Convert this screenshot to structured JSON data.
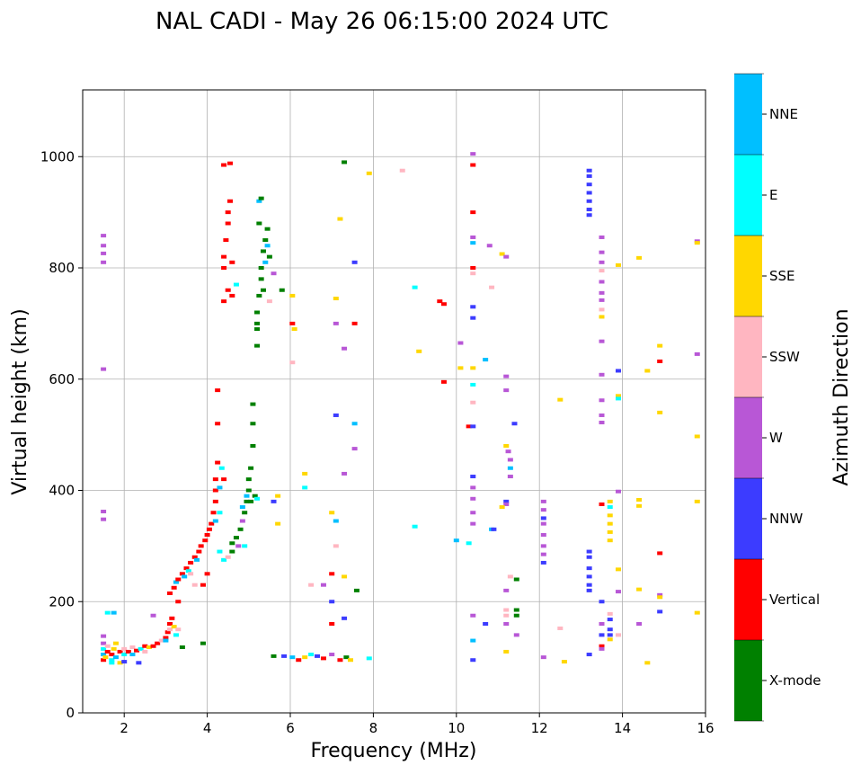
{
  "chart_data": {
    "type": "scatter",
    "title": "NAL CADI - May 26 06:15:00 2024 UTC",
    "xlabel": "Frequency (MHz)",
    "ylabel": "Virtual height (km)",
    "xlim": [
      1,
      16
    ],
    "ylim": [
      0,
      1120
    ],
    "xticks": [
      2,
      4,
      6,
      8,
      10,
      12,
      14,
      16
    ],
    "yticks": [
      0,
      200,
      400,
      600,
      800,
      1000
    ],
    "grid": true,
    "colorbar": {
      "label": "Azimuth Direction",
      "categories": [
        "X-mode",
        "Vertical",
        "NNW",
        "W",
        "SSW",
        "SSE",
        "E",
        "NNE"
      ],
      "colors": [
        "#008000",
        "#ff0000",
        "#3c3cff",
        "#b857d6",
        "#ffb6c1",
        "#ffd700",
        "#00ffff",
        "#00bfff"
      ]
    },
    "point_format": [
      "frequency_mhz",
      "height_km",
      "category_index"
    ],
    "points": [
      [
        1.5,
        95,
        1
      ],
      [
        1.5,
        105,
        7
      ],
      [
        1.5,
        115,
        6
      ],
      [
        1.5,
        125,
        3
      ],
      [
        1.5,
        138,
        3
      ],
      [
        1.55,
        100,
        5
      ],
      [
        1.6,
        110,
        1
      ],
      [
        1.6,
        120,
        4
      ],
      [
        1.7,
        95,
        6
      ],
      [
        1.7,
        105,
        1
      ],
      [
        1.75,
        115,
        5
      ],
      [
        1.8,
        100,
        7
      ],
      [
        1.8,
        125,
        5
      ],
      [
        1.9,
        110,
        1
      ],
      [
        1.9,
        90,
        5
      ],
      [
        2.0,
        105,
        6
      ],
      [
        2.0,
        115,
        4
      ],
      [
        2.1,
        110,
        1
      ],
      [
        2.2,
        105,
        7
      ],
      [
        2.2,
        118,
        4
      ],
      [
        2.3,
        112,
        1
      ],
      [
        2.4,
        115,
        6
      ],
      [
        2.5,
        110,
        4
      ],
      [
        2.5,
        120,
        1
      ],
      [
        2.6,
        118,
        5
      ],
      [
        2.7,
        120,
        1
      ],
      [
        2.8,
        125,
        1
      ],
      [
        2.9,
        130,
        4
      ],
      [
        3.0,
        135,
        1
      ],
      [
        3.05,
        145,
        1
      ],
      [
        3.1,
        150,
        4
      ],
      [
        3.1,
        160,
        1
      ],
      [
        3.15,
        170,
        1
      ],
      [
        3.2,
        155,
        5
      ],
      [
        3.25,
        140,
        6
      ],
      [
        3.3,
        150,
        4
      ],
      [
        3.4,
        118,
        0
      ],
      [
        1.6,
        180,
        6
      ],
      [
        1.75,
        180,
        7
      ],
      [
        2.7,
        175,
        3
      ],
      [
        3.0,
        130,
        7
      ],
      [
        2.35,
        90,
        2
      ],
      [
        2.0,
        92,
        2
      ],
      [
        1.7,
        90,
        6
      ],
      [
        3.9,
        125,
        0
      ],
      [
        3.1,
        215,
        1
      ],
      [
        3.2,
        225,
        1
      ],
      [
        3.25,
        235,
        7
      ],
      [
        3.3,
        240,
        1
      ],
      [
        3.4,
        250,
        1
      ],
      [
        3.45,
        245,
        7
      ],
      [
        3.5,
        260,
        1
      ],
      [
        3.55,
        255,
        6
      ],
      [
        3.6,
        270,
        1
      ],
      [
        3.7,
        280,
        1
      ],
      [
        3.75,
        275,
        7
      ],
      [
        3.8,
        290,
        1
      ],
      [
        3.85,
        300,
        1
      ],
      [
        3.9,
        230,
        1
      ],
      [
        3.95,
        310,
        1
      ],
      [
        4.0,
        320,
        1
      ],
      [
        4.05,
        330,
        1
      ],
      [
        4.1,
        340,
        1
      ],
      [
        4.15,
        360,
        1
      ],
      [
        4.2,
        380,
        1
      ],
      [
        4.2,
        400,
        1
      ],
      [
        4.2,
        420,
        1
      ],
      [
        4.25,
        450,
        1
      ],
      [
        4.25,
        520,
        1
      ],
      [
        4.25,
        580,
        1
      ],
      [
        4.2,
        345,
        7
      ],
      [
        4.3,
        360,
        6
      ],
      [
        4.3,
        405,
        7
      ],
      [
        4.3,
        290,
        6
      ],
      [
        4.35,
        440,
        6
      ],
      [
        4.4,
        420,
        1
      ],
      [
        4.4,
        275,
        6
      ],
      [
        4.5,
        280,
        4
      ],
      [
        3.3,
        200,
        1
      ],
      [
        3.6,
        250,
        4
      ],
      [
        3.7,
        230,
        4
      ],
      [
        4.0,
        250,
        1
      ],
      [
        4.6,
        305,
        0
      ],
      [
        4.7,
        315,
        0
      ],
      [
        4.8,
        330,
        0
      ],
      [
        4.85,
        345,
        3
      ],
      [
        4.9,
        360,
        0
      ],
      [
        4.95,
        380,
        0
      ],
      [
        5.0,
        400,
        0
      ],
      [
        5.0,
        420,
        0
      ],
      [
        5.05,
        440,
        0
      ],
      [
        5.1,
        480,
        0
      ],
      [
        5.1,
        520,
        0
      ],
      [
        5.1,
        555,
        0
      ],
      [
        4.9,
        300,
        6
      ],
      [
        4.95,
        390,
        7
      ],
      [
        4.85,
        370,
        7
      ],
      [
        5.05,
        380,
        0
      ],
      [
        5.15,
        390,
        0
      ],
      [
        4.75,
        300,
        3
      ],
      [
        5.2,
        385,
        6
      ],
      [
        4.6,
        290,
        0
      ],
      [
        4.4,
        740,
        1
      ],
      [
        4.4,
        800,
        1
      ],
      [
        4.4,
        820,
        1
      ],
      [
        4.45,
        850,
        1
      ],
      [
        4.5,
        880,
        1
      ],
      [
        4.5,
        900,
        1
      ],
      [
        4.55,
        920,
        1
      ],
      [
        4.4,
        985,
        1
      ],
      [
        4.55,
        988,
        1
      ],
      [
        4.6,
        750,
        1
      ],
      [
        4.6,
        810,
        1
      ],
      [
        4.7,
        770,
        6
      ],
      [
        4.5,
        760,
        1
      ],
      [
        5.2,
        700,
        0
      ],
      [
        5.2,
        720,
        0
      ],
      [
        5.25,
        750,
        0
      ],
      [
        5.3,
        780,
        0
      ],
      [
        5.3,
        800,
        0
      ],
      [
        5.35,
        830,
        0
      ],
      [
        5.4,
        850,
        0
      ],
      [
        5.45,
        870,
        0
      ],
      [
        5.25,
        880,
        0
      ],
      [
        5.25,
        920,
        7
      ],
      [
        5.3,
        925,
        0
      ],
      [
        5.35,
        760,
        0
      ],
      [
        5.45,
        840,
        7
      ],
      [
        5.5,
        820,
        0
      ],
      [
        5.4,
        810,
        7
      ],
      [
        5.2,
        690,
        0
      ],
      [
        5.5,
        740,
        4
      ],
      [
        5.6,
        790,
        3
      ],
      [
        5.8,
        760,
        0
      ],
      [
        5.2,
        660,
        0
      ],
      [
        5.6,
        102,
        0
      ],
      [
        5.85,
        102,
        2
      ],
      [
        6.05,
        100,
        7
      ],
      [
        6.2,
        95,
        1
      ],
      [
        6.35,
        100,
        5
      ],
      [
        6.5,
        105,
        6
      ],
      [
        6.65,
        102,
        2
      ],
      [
        6.8,
        98,
        1
      ],
      [
        7.0,
        105,
        3
      ],
      [
        7.2,
        95,
        1
      ],
      [
        7.35,
        100,
        0
      ],
      [
        7.45,
        95,
        5
      ],
      [
        7.9,
        98,
        6
      ],
      [
        6.05,
        700,
        1
      ],
      [
        6.1,
        690,
        5
      ],
      [
        6.05,
        750,
        5
      ],
      [
        6.05,
        630,
        4
      ],
      [
        6.35,
        430,
        5
      ],
      [
        6.35,
        405,
        6
      ],
      [
        5.7,
        390,
        5
      ],
      [
        5.7,
        340,
        5
      ],
      [
        5.6,
        380,
        2
      ],
      [
        6.5,
        230,
        4
      ],
      [
        6.8,
        230,
        3
      ],
      [
        7.0,
        360,
        5
      ],
      [
        7.0,
        250,
        1
      ],
      [
        7.0,
        200,
        2
      ],
      [
        7.0,
        160,
        1
      ],
      [
        7.1,
        345,
        7
      ],
      [
        7.1,
        300,
        4
      ],
      [
        7.2,
        888,
        5
      ],
      [
        7.1,
        745,
        5
      ],
      [
        7.1,
        700,
        3
      ],
      [
        7.1,
        535,
        2
      ],
      [
        7.3,
        990,
        0
      ],
      [
        7.3,
        655,
        3
      ],
      [
        7.3,
        430,
        3
      ],
      [
        7.3,
        245,
        5
      ],
      [
        7.3,
        170,
        2
      ],
      [
        7.55,
        810,
        2
      ],
      [
        7.55,
        700,
        1
      ],
      [
        7.55,
        520,
        7
      ],
      [
        7.55,
        475,
        3
      ],
      [
        7.6,
        220,
        0
      ],
      [
        7.9,
        970,
        5
      ],
      [
        8.7,
        975,
        4
      ],
      [
        9.0,
        765,
        6
      ],
      [
        9.1,
        650,
        5
      ],
      [
        9.0,
        335,
        6
      ],
      [
        9.6,
        740,
        1
      ],
      [
        9.7,
        735,
        1
      ],
      [
        9.7,
        595,
        1
      ],
      [
        10.1,
        665,
        3
      ],
      [
        10.1,
        620,
        5
      ],
      [
        10.0,
        310,
        7
      ],
      [
        10.3,
        515,
        1
      ],
      [
        10.3,
        305,
        6
      ],
      [
        10.4,
        1005,
        3
      ],
      [
        10.4,
        985,
        1
      ],
      [
        10.4,
        900,
        1
      ],
      [
        10.4,
        855,
        3
      ],
      [
        10.4,
        845,
        7
      ],
      [
        10.4,
        800,
        1
      ],
      [
        10.4,
        790,
        4
      ],
      [
        10.4,
        730,
        2
      ],
      [
        10.4,
        710,
        2
      ],
      [
        10.4,
        620,
        5
      ],
      [
        10.4,
        590,
        6
      ],
      [
        10.4,
        558,
        4
      ],
      [
        10.4,
        515,
        2
      ],
      [
        10.4,
        425,
        2
      ],
      [
        10.4,
        405,
        3
      ],
      [
        10.4,
        385,
        3
      ],
      [
        10.4,
        360,
        3
      ],
      [
        10.4,
        340,
        3
      ],
      [
        10.4,
        175,
        3
      ],
      [
        10.4,
        130,
        7
      ],
      [
        10.4,
        95,
        2
      ],
      [
        10.7,
        635,
        7
      ],
      [
        10.7,
        160,
        2
      ],
      [
        10.8,
        840,
        3
      ],
      [
        10.85,
        765,
        4
      ],
      [
        10.85,
        330,
        7
      ],
      [
        10.9,
        330,
        2
      ],
      [
        11.1,
        825,
        5
      ],
      [
        11.2,
        820,
        3
      ],
      [
        11.2,
        605,
        3
      ],
      [
        11.2,
        580,
        3
      ],
      [
        11.2,
        480,
        5
      ],
      [
        11.25,
        470,
        3
      ],
      [
        11.3,
        455,
        3
      ],
      [
        11.3,
        440,
        7
      ],
      [
        11.3,
        425,
        3
      ],
      [
        11.2,
        380,
        2
      ],
      [
        11.2,
        375,
        3
      ],
      [
        11.1,
        370,
        5
      ],
      [
        11.2,
        220,
        3
      ],
      [
        11.2,
        185,
        4
      ],
      [
        11.2,
        175,
        4
      ],
      [
        11.2,
        160,
        3
      ],
      [
        11.2,
        110,
        5
      ],
      [
        11.4,
        520,
        2
      ],
      [
        11.3,
        245,
        4
      ],
      [
        11.45,
        240,
        0
      ],
      [
        11.45,
        185,
        0
      ],
      [
        11.45,
        175,
        0
      ],
      [
        11.45,
        140,
        3
      ],
      [
        12.1,
        380,
        3
      ],
      [
        12.1,
        365,
        3
      ],
      [
        12.1,
        350,
        2
      ],
      [
        12.1,
        340,
        3
      ],
      [
        12.1,
        320,
        3
      ],
      [
        12.1,
        300,
        3
      ],
      [
        12.1,
        285,
        3
      ],
      [
        12.1,
        270,
        2
      ],
      [
        12.1,
        100,
        3
      ],
      [
        12.5,
        563,
        5
      ],
      [
        12.5,
        152,
        4
      ],
      [
        12.6,
        92,
        5
      ],
      [
        13.2,
        975,
        2
      ],
      [
        13.2,
        965,
        2
      ],
      [
        13.2,
        950,
        2
      ],
      [
        13.2,
        935,
        2
      ],
      [
        13.2,
        920,
        2
      ],
      [
        13.2,
        905,
        2
      ],
      [
        13.2,
        895,
        2
      ],
      [
        13.2,
        290,
        2
      ],
      [
        13.2,
        280,
        2
      ],
      [
        13.2,
        260,
        2
      ],
      [
        13.2,
        245,
        2
      ],
      [
        13.2,
        230,
        2
      ],
      [
        13.2,
        220,
        2
      ],
      [
        13.2,
        105,
        2
      ],
      [
        13.5,
        855,
        3
      ],
      [
        13.5,
        828,
        3
      ],
      [
        13.5,
        810,
        3
      ],
      [
        13.5,
        795,
        4
      ],
      [
        13.5,
        775,
        3
      ],
      [
        13.5,
        755,
        3
      ],
      [
        13.5,
        742,
        3
      ],
      [
        13.5,
        725,
        4
      ],
      [
        13.5,
        712,
        5
      ],
      [
        13.5,
        668,
        3
      ],
      [
        13.5,
        608,
        3
      ],
      [
        13.5,
        562,
        3
      ],
      [
        13.5,
        535,
        3
      ],
      [
        13.5,
        522,
        3
      ],
      [
        13.5,
        375,
        1
      ],
      [
        13.5,
        200,
        2
      ],
      [
        13.5,
        160,
        3
      ],
      [
        13.5,
        140,
        2
      ],
      [
        13.5,
        120,
        1
      ],
      [
        13.5,
        115,
        3
      ],
      [
        13.7,
        380,
        5
      ],
      [
        13.7,
        370,
        6
      ],
      [
        13.7,
        355,
        5
      ],
      [
        13.7,
        340,
        5
      ],
      [
        13.7,
        325,
        5
      ],
      [
        13.7,
        310,
        5
      ],
      [
        13.7,
        178,
        4
      ],
      [
        13.7,
        168,
        2
      ],
      [
        13.7,
        150,
        2
      ],
      [
        13.7,
        140,
        2
      ],
      [
        13.7,
        132,
        5
      ],
      [
        13.9,
        615,
        2
      ],
      [
        13.9,
        570,
        5
      ],
      [
        13.9,
        565,
        6
      ],
      [
        13.9,
        398,
        3
      ],
      [
        13.9,
        258,
        5
      ],
      [
        13.9,
        218,
        3
      ],
      [
        13.9,
        140,
        4
      ],
      [
        13.9,
        805,
        5
      ],
      [
        14.4,
        818,
        5
      ],
      [
        14.4,
        383,
        5
      ],
      [
        14.4,
        372,
        5
      ],
      [
        14.4,
        222,
        5
      ],
      [
        14.4,
        160,
        3
      ],
      [
        14.6,
        90,
        5
      ],
      [
        14.6,
        615,
        5
      ],
      [
        14.9,
        660,
        5
      ],
      [
        14.9,
        632,
        1
      ],
      [
        14.9,
        540,
        5
      ],
      [
        14.9,
        287,
        1
      ],
      [
        14.9,
        212,
        3
      ],
      [
        14.9,
        208,
        5
      ],
      [
        14.9,
        182,
        2
      ],
      [
        15.8,
        848,
        3
      ],
      [
        15.8,
        845,
        5
      ],
      [
        15.8,
        645,
        3
      ],
      [
        15.8,
        497,
        5
      ],
      [
        15.8,
        380,
        5
      ],
      [
        15.8,
        180,
        5
      ],
      [
        1.5,
        858,
        3
      ],
      [
        1.5,
        840,
        3
      ],
      [
        1.5,
        826,
        3
      ],
      [
        1.5,
        810,
        3
      ],
      [
        1.5,
        618,
        3
      ],
      [
        1.5,
        362,
        3
      ],
      [
        1.5,
        348,
        3
      ]
    ]
  }
}
